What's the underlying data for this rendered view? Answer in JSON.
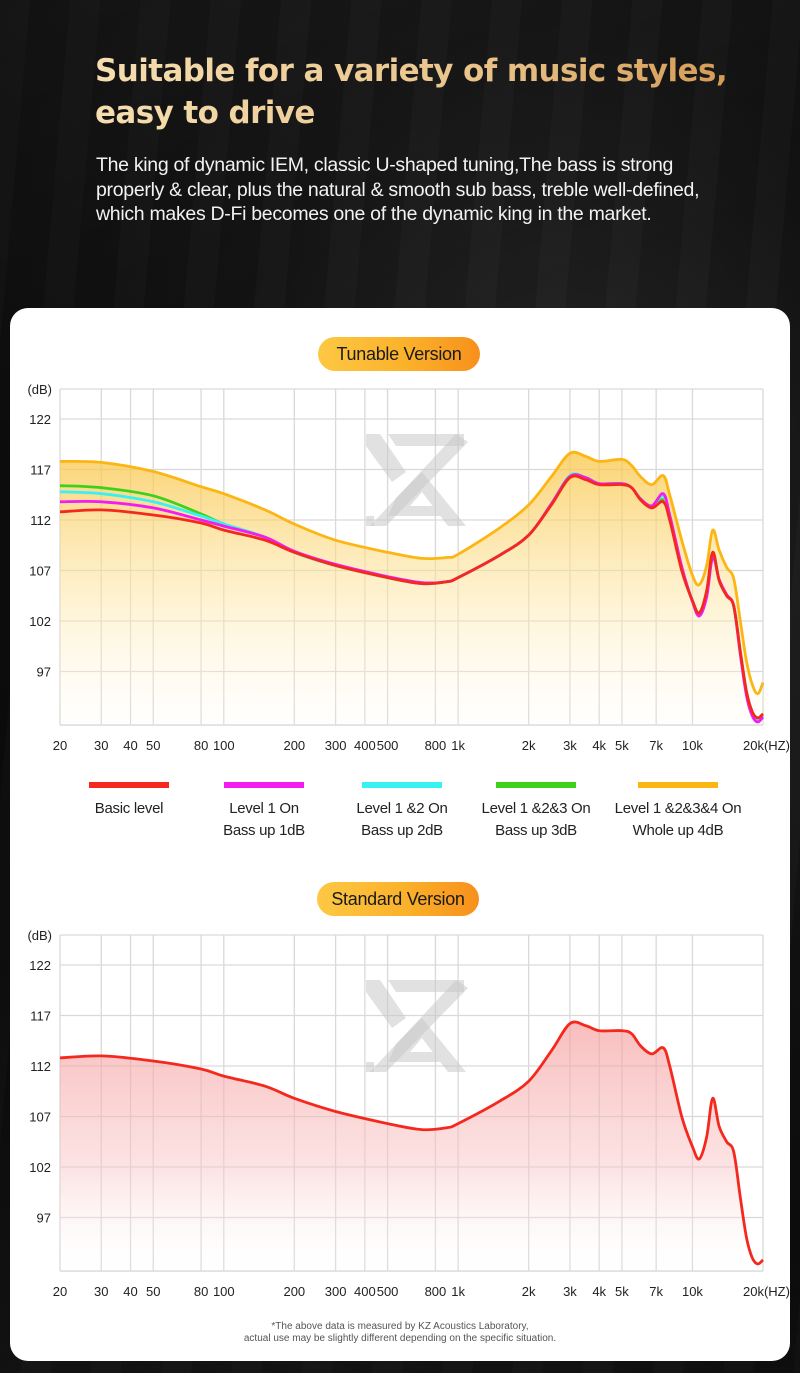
{
  "header": {
    "title_line1": "Suitable for a variety of music styles,",
    "title_line2": "easy to drive",
    "description_line1": "The king of dynamic IEM, classic U-shaped tuning,The bass is strong",
    "description_line2": "properly & clear, plus the natural & smooth sub bass, treble well-defined,",
    "description_line3": "which makes D-Fi becomes one of the dynamic king in the market."
  },
  "colors": {
    "title_gold": "#e9c38a",
    "pill_orange": "#fbb12a",
    "basic": "#f5281e",
    "level1": "#f21cf2",
    "level12": "#38f2f2",
    "level123": "#3fd11a",
    "level1234": "#fbb614",
    "grid": "#d9d9d9"
  },
  "footnote": {
    "line1": "*The above data is measured by KZ Acoustics Laboratory,",
    "line2": "actual use may be slightly different depending on the specific situation."
  },
  "chart_data": [
    {
      "id": "tunable",
      "title": "Tunable Version",
      "type": "line",
      "xscale": "log",
      "xlabel": "(HZ)",
      "ylabel": "(dB)",
      "ylim": [
        91.8,
        125
      ],
      "xlim": [
        20,
        20000
      ],
      "grid": true,
      "yticks": [
        122,
        117,
        112,
        107,
        102,
        97
      ],
      "xticks": [
        {
          "v": 20,
          "label": "20"
        },
        {
          "v": 30,
          "label": "30"
        },
        {
          "v": 40,
          "label": "40"
        },
        {
          "v": 50,
          "label": "50"
        },
        {
          "v": 80,
          "label": "80"
        },
        {
          "v": 100,
          "label": "100"
        },
        {
          "v": 200,
          "label": "200"
        },
        {
          "v": 300,
          "label": "300"
        },
        {
          "v": 400,
          "label": "400"
        },
        {
          "v": 500,
          "label": "500"
        },
        {
          "v": 800,
          "label": "800"
        },
        {
          "v": 1000,
          "label": "1k"
        },
        {
          "v": 2000,
          "label": "2k"
        },
        {
          "v": 3000,
          "label": "3k"
        },
        {
          "v": 4000,
          "label": "4k"
        },
        {
          "v": 5000,
          "label": "5k"
        },
        {
          "v": 7000,
          "label": "7k"
        },
        {
          "v": 10000,
          "label": "10k"
        },
        {
          "v": 20000,
          "label": "20k(HZ)"
        }
      ],
      "legend": [
        {
          "key": "level1234",
          "line1": "Level 1 &2&3&4 On",
          "line2": "Whole up 4dB"
        },
        {
          "key": "level123",
          "line1": "Level 1 &2&3 On",
          "line2": "Bass up 3dB"
        },
        {
          "key": "level12",
          "line1": "Level 1 &2 On",
          "line2": "Bass up 2dB"
        },
        {
          "key": "level1",
          "line1": "Level 1 On",
          "line2": "Bass up 1dB"
        },
        {
          "key": "basic",
          "line1": "Basic level",
          "line2": ""
        }
      ],
      "x": [
        20,
        30,
        50,
        80,
        100,
        150,
        200,
        300,
        500,
        700,
        900,
        1000,
        1500,
        2000,
        2500,
        3000,
        3500,
        4000,
        5000,
        5500,
        6000,
        6700,
        7500,
        8000,
        9000,
        10000,
        10700,
        11500,
        12200,
        13000,
        14000,
        15000,
        16000,
        17000,
        18000,
        19000,
        20000
      ],
      "series": [
        {
          "name": "Level 1 &2&3&4 On / Whole up 4dB",
          "key": "level1234",
          "fill": true,
          "values": [
            117.8,
            117.7,
            116.8,
            115.3,
            114.6,
            113,
            111.6,
            110,
            108.8,
            108.2,
            108.3,
            108.6,
            111.2,
            113.5,
            116.3,
            118.6,
            118.3,
            117.8,
            118,
            117.4,
            116.3,
            115.5,
            116.4,
            114.5,
            110,
            106.5,
            105.6,
            107.5,
            111,
            109,
            107.3,
            106.2,
            102,
            98,
            95.7,
            94.8,
            95.9
          ]
        },
        {
          "name": "Level 1 &2&3 On / Bass up 3dB",
          "key": "level123",
          "fill": false,
          "values": [
            115.4,
            115.2,
            114.4,
            112.6,
            111.6,
            110.3,
            108.8,
            107.5,
            106.3,
            105.7,
            105.9,
            106.3,
            108.5,
            110.5,
            113.6,
            116.3,
            116.2,
            115.6,
            115.6,
            115.2,
            114.1,
            113.3,
            114,
            112.2,
            107.2,
            104,
            102.8,
            105,
            108.8,
            106,
            104.5,
            103.5,
            99,
            95,
            93,
            92.4,
            92.8
          ]
        },
        {
          "name": "Level 1 &2 On / Bass up 2dB",
          "key": "level12",
          "fill": false,
          "values": [
            114.8,
            114.6,
            113.8,
            112.4,
            111.6,
            110.3,
            108.8,
            107.5,
            106.3,
            105.7,
            105.9,
            106.3,
            108.5,
            110.5,
            113.6,
            116.4,
            116.2,
            115.6,
            115.6,
            115.2,
            114.1,
            113.4,
            114.4,
            112.3,
            107.3,
            104,
            102.6,
            104.6,
            108.5,
            106,
            104.5,
            103.5,
            98.8,
            94.8,
            92.8,
            92.1,
            92.6
          ]
        },
        {
          "name": "Level 1 On / Bass up 1dB",
          "key": "level1",
          "fill": false,
          "values": [
            113.8,
            113.8,
            113.2,
            112,
            111.4,
            110.3,
            108.9,
            107.6,
            106.4,
            105.8,
            105.9,
            106.3,
            108.5,
            110.5,
            113.6,
            116.3,
            116.2,
            115.6,
            115.6,
            115.2,
            114.1,
            113.4,
            114.6,
            112.5,
            107.4,
            103.9,
            102.5,
            104.4,
            108.3,
            106.1,
            104.6,
            103.5,
            98.7,
            94.6,
            92.6,
            92,
            92.5
          ]
        },
        {
          "name": "Basic level",
          "key": "basic",
          "fill": false,
          "values": [
            112.8,
            113,
            112.5,
            111.7,
            111,
            110,
            108.8,
            107.5,
            106.3,
            105.7,
            105.9,
            106.3,
            108.5,
            110.5,
            113.5,
            116.2,
            116,
            115.5,
            115.5,
            115.2,
            114,
            113.2,
            113.8,
            112,
            107,
            104,
            102.8,
            105,
            108.8,
            106,
            104.5,
            103.5,
            99,
            95,
            93,
            92.4,
            92.8
          ]
        }
      ]
    },
    {
      "id": "standard",
      "title": "Standard Version",
      "type": "line",
      "xscale": "log",
      "xlabel": "(HZ)",
      "ylabel": "(dB)",
      "ylim": [
        91.8,
        125
      ],
      "xlim": [
        20,
        20000
      ],
      "grid": true,
      "yticks": [
        122,
        117,
        112,
        107,
        102,
        97
      ],
      "x": [
        20,
        30,
        50,
        80,
        100,
        150,
        200,
        300,
        500,
        700,
        900,
        1000,
        1500,
        2000,
        2500,
        3000,
        3500,
        4000,
        5000,
        5500,
        6000,
        6700,
        7500,
        8000,
        9000,
        10000,
        10700,
        11500,
        12200,
        13000,
        14000,
        15000,
        16000,
        17000,
        18000,
        19000,
        20000
      ],
      "series": [
        {
          "name": "Standard",
          "key": "basic",
          "fill": true,
          "values": [
            112.8,
            113,
            112.5,
            111.7,
            111,
            110,
            108.8,
            107.5,
            106.3,
            105.7,
            105.9,
            106.3,
            108.5,
            110.5,
            113.5,
            116.2,
            116,
            115.5,
            115.5,
            115.2,
            114,
            113.2,
            113.8,
            112,
            107,
            104,
            102.8,
            105,
            108.8,
            106,
            104.5,
            103.5,
            99,
            95,
            93,
            92.4,
            92.8
          ]
        }
      ]
    }
  ]
}
